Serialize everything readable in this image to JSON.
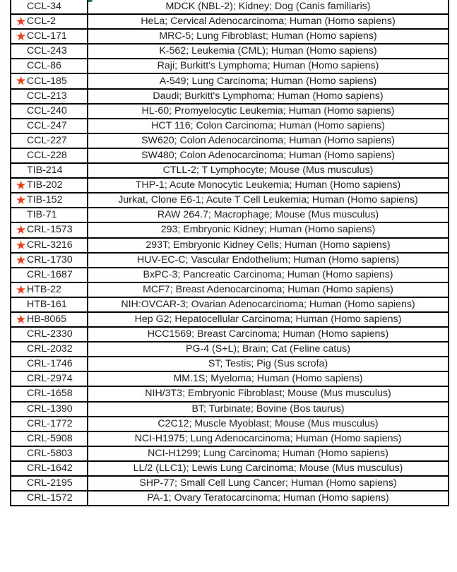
{
  "colors": {
    "star": "#e8401c",
    "selection_handle": "#1e7a3a"
  },
  "rows": [
    {
      "id": "CCL-34",
      "desc": "MDCK (NBL-2); Kidney; Dog (Canis familiaris)",
      "starred": false
    },
    {
      "id": "CCL-2",
      "desc": "HeLa; Cervical Adenocarcinoma; Human (Homo sapiens)",
      "starred": true
    },
    {
      "id": "CCL-171",
      "desc": "MRC-5; Lung Fibroblast; Human (Homo sapiens)",
      "starred": true
    },
    {
      "id": "CCL-243",
      "desc": "K-562; Leukemia (CML); Human (Homo sapiens)",
      "starred": false
    },
    {
      "id": "CCL-86",
      "desc": "Raji; Burkitt's Lymphoma; Human (Homo sapiens)",
      "starred": false
    },
    {
      "id": "CCL-185",
      "desc": "A-549; Lung Carcinoma; Human (Homo sapiens)",
      "starred": true
    },
    {
      "id": "CCL-213",
      "desc": "Daudi; Burkitt's Lymphoma; Human (Homo sapiens)",
      "starred": false
    },
    {
      "id": "CCL-240",
      "desc": "HL-60; Promyelocytic Leukemia; Human (Homo sapiens)",
      "starred": false
    },
    {
      "id": "CCL-247",
      "desc": "HCT 116; Colon Carcinoma; Human (Homo sapiens)",
      "starred": false
    },
    {
      "id": "CCL-227",
      "desc": "SW620; Colon Adenocarcinoma; Human (Homo sapiens)",
      "starred": false
    },
    {
      "id": "CCL-228",
      "desc": "SW480; Colon Adenocarcinoma; Human (Homo sapiens)",
      "starred": false
    },
    {
      "id": "TIB-214",
      "desc": "CTLL-2; T Lymphocyte; Mouse (Mus musculus)",
      "starred": false
    },
    {
      "id": "TIB-202",
      "desc": "THP-1; Acute Monocytic Leukemia; Human (Homo sapiens)",
      "starred": true
    },
    {
      "id": "TIB-152",
      "desc": "Jurkat, Clone E6-1; Acute T Cell Leukemia; Human (Homo sapiens)",
      "starred": true
    },
    {
      "id": "TIB-71",
      "desc": "RAW 264.7; Macrophage; Mouse (Mus musculus)",
      "starred": false
    },
    {
      "id": "CRL-1573",
      "desc": "293; Embryonic Kidney; Human (Homo sapiens)",
      "starred": true
    },
    {
      "id": "CRL-3216",
      "desc": "293T; Embryonic Kidney Cells; Human (Homo sapiens)",
      "starred": true
    },
    {
      "id": "CRL-1730",
      "desc": "HUV-EC-C; Vascular Endothelium; Human (Homo sapiens)",
      "starred": true
    },
    {
      "id": "CRL-1687",
      "desc": "BxPC-3; Pancreatic Carcinoma; Human (Homo sapiens)",
      "starred": false
    },
    {
      "id": "HTB-22",
      "desc": "MCF7; Breast Adenocarcinoma; Human (Homo sapiens)",
      "starred": true
    },
    {
      "id": "HTB-161",
      "desc": "NIH:OVCAR-3; Ovarian Adenocarcinoma; Human (Homo sapiens)",
      "starred": false
    },
    {
      "id": "HB-8065",
      "desc": "Hep G2; Hepatocellular Carcinoma; Human (Homo sapiens)",
      "starred": true
    },
    {
      "id": "CRL-2330",
      "desc": "HCC1569; Breast Carcinoma; Human (Homo sapiens)",
      "starred": false
    },
    {
      "id": "CRL-2032",
      "desc": "PG-4 (S+L); Brain; Cat (Feline catus)",
      "starred": false
    },
    {
      "id": "CRL-1746",
      "desc": "ST; Testis; Pig (Sus scrofa)",
      "starred": false
    },
    {
      "id": "CRL-2974",
      "desc": "MM.1S; Myeloma; Human (Homo sapiens)",
      "starred": false
    },
    {
      "id": "CRL-1658",
      "desc": "NIH/3T3; Embryonic Fibroblast; Mouse (Mus musculus)",
      "starred": false
    },
    {
      "id": "CRL-1390",
      "desc": "BT; Turbinate; Bovine (Bos taurus)",
      "starred": false
    },
    {
      "id": "CRL-1772",
      "desc": "C2C12; Muscle Myoblast; Mouse (Mus musculus)",
      "starred": false
    },
    {
      "id": "CRL-5908",
      "desc": "NCI-H1975; Lung Adenocarcinoma; Human (Homo sapiens)",
      "starred": false
    },
    {
      "id": "CRL-5803",
      "desc": "NCI-H1299; Lung Carcinoma; Human (Homo sapiens)",
      "starred": false
    },
    {
      "id": "CRL-1642",
      "desc": "LL/2 (LLC1); Lewis Lung Carcinoma; Mouse (Mus musculus)",
      "starred": false
    },
    {
      "id": "CRL-2195",
      "desc": "SHP-77; Small Cell Lung Cancer; Human (Homo sapiens)",
      "starred": false
    },
    {
      "id": "CRL-1572",
      "desc": "PA-1; Ovary Teratocarcinoma; Human (Homo sapiens)",
      "starred": false
    }
  ],
  "star_glyph": "★"
}
